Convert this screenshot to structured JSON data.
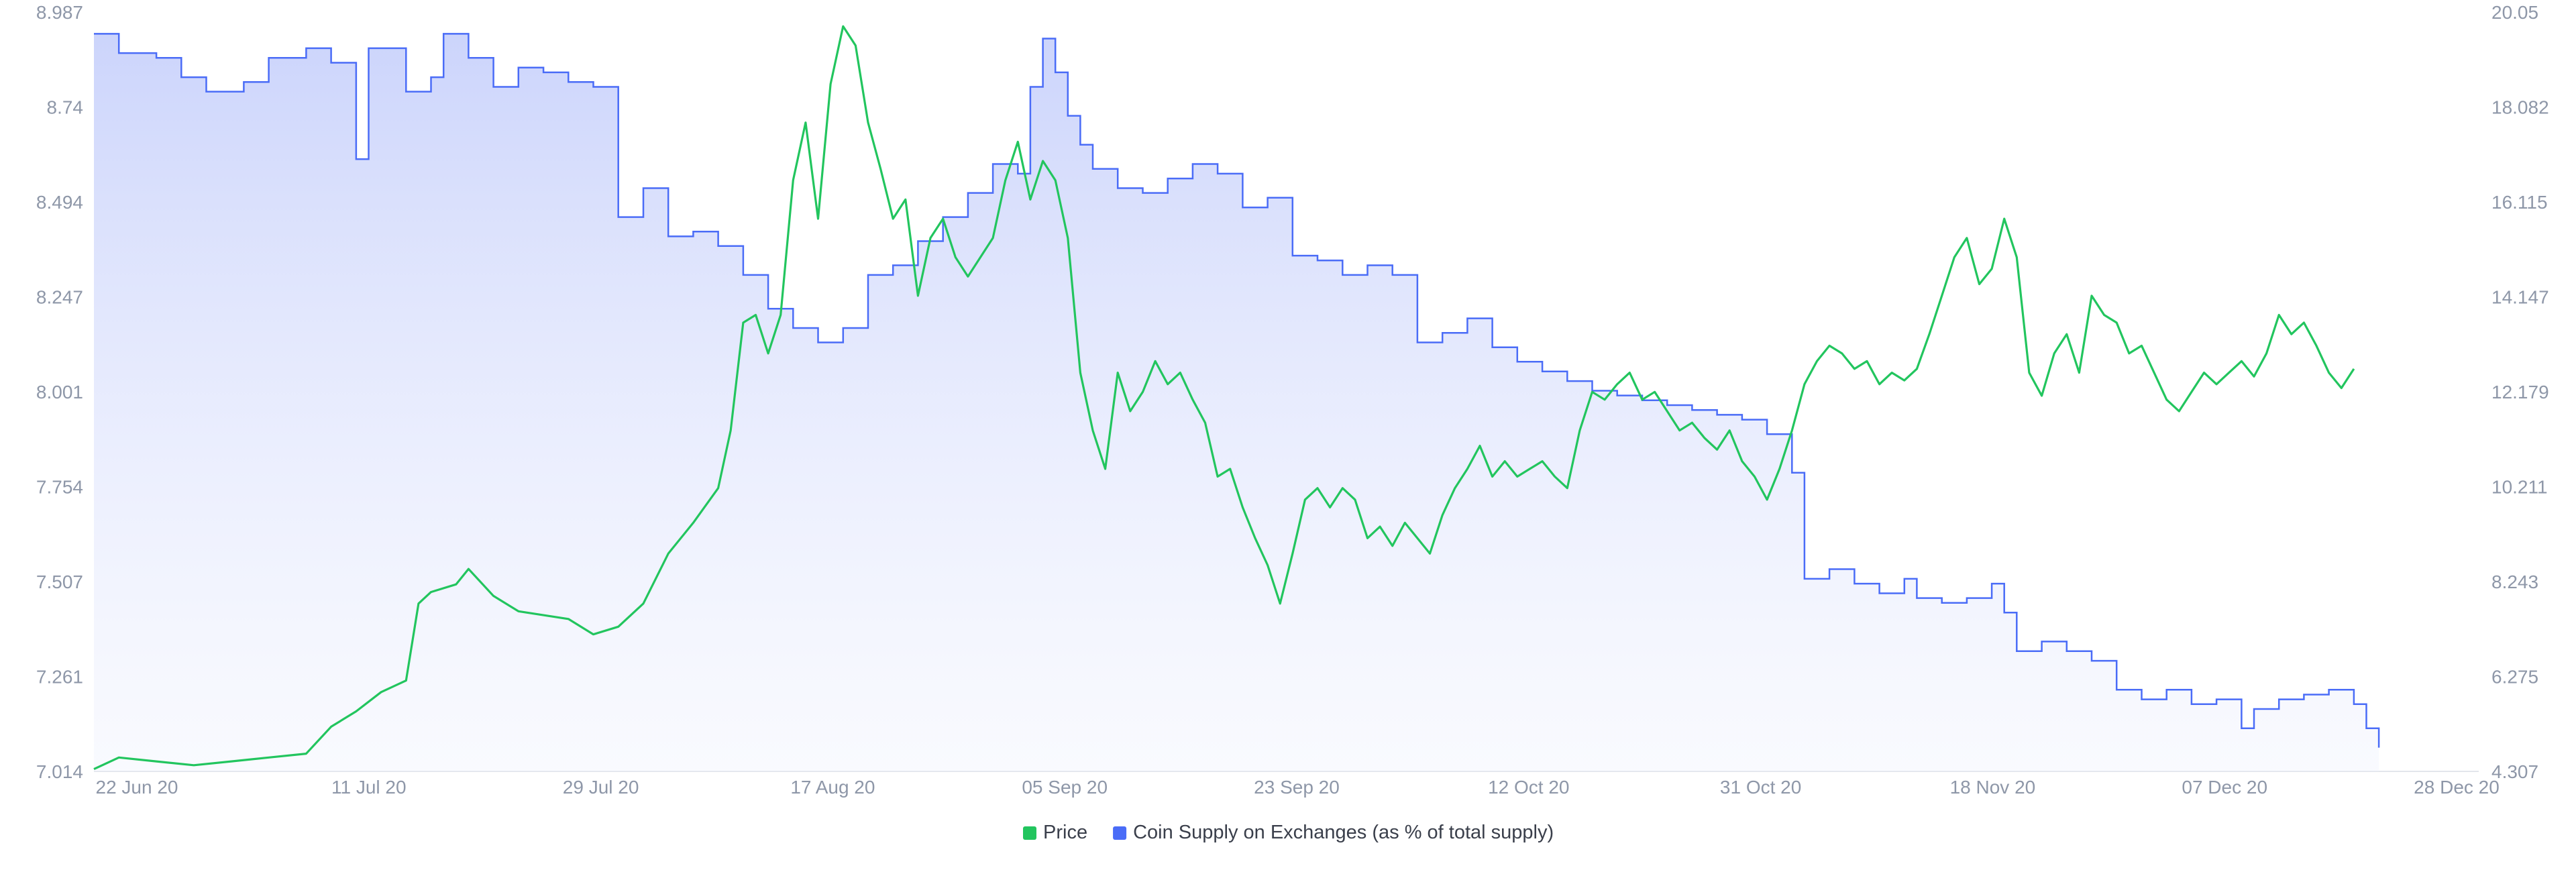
{
  "chart_data": {
    "type": "line",
    "title": "",
    "xlabel": "",
    "x_tick_labels": [
      "22 Jun 20",
      "11 Jul 20",
      "29 Jul 20",
      "17 Aug 20",
      "05 Sep 20",
      "23 Sep 20",
      "12 Oct 20",
      "31 Oct 20",
      "18 Nov 20",
      "07 Dec 20",
      "28 Dec 20"
    ],
    "x_range": [
      "2020-06-20",
      "2020-12-28"
    ],
    "y_left": {
      "range": [
        7.014,
        8.987
      ],
      "ticks": [
        "8.987",
        "8.74",
        "8.494",
        "8.247",
        "8.001",
        "7.754",
        "7.507",
        "7.261",
        "7.014"
      ]
    },
    "y_right": {
      "range": [
        4.307,
        20.05
      ],
      "ticks": [
        "20.05",
        "18.082",
        "16.115",
        "14.147",
        "12.179",
        "10.211",
        "8.243",
        "6.275",
        "4.307"
      ]
    },
    "grid": false,
    "legend_position": "bottom-center",
    "series": [
      {
        "name": "Price",
        "axis": "left",
        "style": "line",
        "color": "#22c55e",
        "points": [
          [
            "2020-06-20",
            7.02
          ],
          [
            "2020-06-22",
            7.05
          ],
          [
            "2020-06-25",
            7.04
          ],
          [
            "2020-06-28",
            7.03
          ],
          [
            "2020-07-01",
            7.04
          ],
          [
            "2020-07-04",
            7.05
          ],
          [
            "2020-07-07",
            7.06
          ],
          [
            "2020-07-09",
            7.13
          ],
          [
            "2020-07-11",
            7.17
          ],
          [
            "2020-07-13",
            7.22
          ],
          [
            "2020-07-15",
            7.25
          ],
          [
            "2020-07-16",
            7.45
          ],
          [
            "2020-07-17",
            7.48
          ],
          [
            "2020-07-19",
            7.5
          ],
          [
            "2020-07-20",
            7.54
          ],
          [
            "2020-07-22",
            7.47
          ],
          [
            "2020-07-24",
            7.43
          ],
          [
            "2020-07-26",
            7.42
          ],
          [
            "2020-07-28",
            7.41
          ],
          [
            "2020-07-30",
            7.37
          ],
          [
            "2020-08-01",
            7.39
          ],
          [
            "2020-08-03",
            7.45
          ],
          [
            "2020-08-05",
            7.58
          ],
          [
            "2020-08-07",
            7.66
          ],
          [
            "2020-08-09",
            7.75
          ],
          [
            "2020-08-10",
            7.9
          ],
          [
            "2020-08-11",
            8.18
          ],
          [
            "2020-08-12",
            8.2
          ],
          [
            "2020-08-13",
            8.1
          ],
          [
            "2020-08-14",
            8.2
          ],
          [
            "2020-08-15",
            8.55
          ],
          [
            "2020-08-16",
            8.7
          ],
          [
            "2020-08-17",
            8.45
          ],
          [
            "2020-08-18",
            8.8
          ],
          [
            "2020-08-19",
            8.95
          ],
          [
            "2020-08-20",
            8.9
          ],
          [
            "2020-08-21",
            8.7
          ],
          [
            "2020-08-22",
            8.58
          ],
          [
            "2020-08-23",
            8.45
          ],
          [
            "2020-08-24",
            8.5
          ],
          [
            "2020-08-25",
            8.25
          ],
          [
            "2020-08-26",
            8.4
          ],
          [
            "2020-08-27",
            8.45
          ],
          [
            "2020-08-28",
            8.35
          ],
          [
            "2020-08-29",
            8.3
          ],
          [
            "2020-08-31",
            8.4
          ],
          [
            "2020-09-01",
            8.55
          ],
          [
            "2020-09-02",
            8.65
          ],
          [
            "2020-09-03",
            8.5
          ],
          [
            "2020-09-04",
            8.6
          ],
          [
            "2020-09-05",
            8.55
          ],
          [
            "2020-09-06",
            8.4
          ],
          [
            "2020-09-07",
            8.05
          ],
          [
            "2020-09-08",
            7.9
          ],
          [
            "2020-09-09",
            7.8
          ],
          [
            "2020-09-10",
            8.05
          ],
          [
            "2020-09-11",
            7.95
          ],
          [
            "2020-09-12",
            8.0
          ],
          [
            "2020-09-13",
            8.08
          ],
          [
            "2020-09-14",
            8.02
          ],
          [
            "2020-09-15",
            8.05
          ],
          [
            "2020-09-16",
            7.98
          ],
          [
            "2020-09-17",
            7.92
          ],
          [
            "2020-09-18",
            7.78
          ],
          [
            "2020-09-19",
            7.8
          ],
          [
            "2020-09-20",
            7.7
          ],
          [
            "2020-09-21",
            7.62
          ],
          [
            "2020-09-22",
            7.55
          ],
          [
            "2020-09-23",
            7.45
          ],
          [
            "2020-09-24",
            7.58
          ],
          [
            "2020-09-25",
            7.72
          ],
          [
            "2020-09-26",
            7.75
          ],
          [
            "2020-09-27",
            7.7
          ],
          [
            "2020-09-28",
            7.75
          ],
          [
            "2020-09-29",
            7.72
          ],
          [
            "2020-09-30",
            7.62
          ],
          [
            "2020-10-01",
            7.65
          ],
          [
            "2020-10-02",
            7.6
          ],
          [
            "2020-10-03",
            7.66
          ],
          [
            "2020-10-05",
            7.58
          ],
          [
            "2020-10-06",
            7.68
          ],
          [
            "2020-10-07",
            7.75
          ],
          [
            "2020-10-08",
            7.8
          ],
          [
            "2020-10-09",
            7.86
          ],
          [
            "2020-10-10",
            7.78
          ],
          [
            "2020-10-11",
            7.82
          ],
          [
            "2020-10-12",
            7.78
          ],
          [
            "2020-10-13",
            7.8
          ],
          [
            "2020-10-14",
            7.82
          ],
          [
            "2020-10-15",
            7.78
          ],
          [
            "2020-10-16",
            7.75
          ],
          [
            "2020-10-17",
            7.9
          ],
          [
            "2020-10-18",
            8.0
          ],
          [
            "2020-10-19",
            7.98
          ],
          [
            "2020-10-20",
            8.02
          ],
          [
            "2020-10-21",
            8.05
          ],
          [
            "2020-10-22",
            7.98
          ],
          [
            "2020-10-23",
            8.0
          ],
          [
            "2020-10-24",
            7.95
          ],
          [
            "2020-10-25",
            7.9
          ],
          [
            "2020-10-26",
            7.92
          ],
          [
            "2020-10-27",
            7.88
          ],
          [
            "2020-10-28",
            7.85
          ],
          [
            "2020-10-29",
            7.9
          ],
          [
            "2020-10-30",
            7.82
          ],
          [
            "2020-10-31",
            7.78
          ],
          [
            "2020-11-01",
            7.72
          ],
          [
            "2020-11-02",
            7.8
          ],
          [
            "2020-11-03",
            7.9
          ],
          [
            "2020-11-04",
            8.02
          ],
          [
            "2020-11-05",
            8.08
          ],
          [
            "2020-11-06",
            8.12
          ],
          [
            "2020-11-07",
            8.1
          ],
          [
            "2020-11-08",
            8.06
          ],
          [
            "2020-11-09",
            8.08
          ],
          [
            "2020-11-10",
            8.02
          ],
          [
            "2020-11-11",
            8.05
          ],
          [
            "2020-11-12",
            8.03
          ],
          [
            "2020-11-13",
            8.06
          ],
          [
            "2020-11-14",
            8.15
          ],
          [
            "2020-11-15",
            8.25
          ],
          [
            "2020-11-16",
            8.35
          ],
          [
            "2020-11-17",
            8.4
          ],
          [
            "2020-11-18",
            8.28
          ],
          [
            "2020-11-19",
            8.32
          ],
          [
            "2020-11-20",
            8.45
          ],
          [
            "2020-11-21",
            8.35
          ],
          [
            "2020-11-22",
            8.05
          ],
          [
            "2020-11-23",
            7.99
          ],
          [
            "2020-11-24",
            8.1
          ],
          [
            "2020-11-25",
            8.15
          ],
          [
            "2020-11-26",
            8.05
          ],
          [
            "2020-11-27",
            8.25
          ],
          [
            "2020-11-28",
            8.2
          ],
          [
            "2020-11-29",
            8.18
          ],
          [
            "2020-11-30",
            8.1
          ],
          [
            "2020-12-01",
            8.12
          ],
          [
            "2020-12-02",
            8.05
          ],
          [
            "2020-12-03",
            7.98
          ],
          [
            "2020-12-04",
            7.95
          ],
          [
            "2020-12-05",
            8.0
          ],
          [
            "2020-12-06",
            8.05
          ],
          [
            "2020-12-07",
            8.02
          ],
          [
            "2020-12-08",
            8.05
          ],
          [
            "2020-12-09",
            8.08
          ],
          [
            "2020-12-10",
            8.04
          ],
          [
            "2020-12-11",
            8.1
          ],
          [
            "2020-12-12",
            8.2
          ],
          [
            "2020-12-13",
            8.15
          ],
          [
            "2020-12-14",
            8.18
          ],
          [
            "2020-12-15",
            8.12
          ],
          [
            "2020-12-16",
            8.05
          ],
          [
            "2020-12-17",
            8.01
          ],
          [
            "2020-12-18",
            8.06
          ]
        ]
      },
      {
        "name": "Coin Supply on Exchanges (as % of total supply)",
        "axis": "right",
        "style": "step-area",
        "color": "#4a6cf7",
        "fill": "#c9d2fb",
        "points": [
          [
            "2020-06-20",
            19.6
          ],
          [
            "2020-06-22",
            19.2
          ],
          [
            "2020-06-25",
            19.1
          ],
          [
            "2020-06-27",
            18.7
          ],
          [
            "2020-06-29",
            18.4
          ],
          [
            "2020-07-02",
            18.6
          ],
          [
            "2020-07-04",
            19.1
          ],
          [
            "2020-07-07",
            19.3
          ],
          [
            "2020-07-09",
            19.0
          ],
          [
            "2020-07-11",
            17.0
          ],
          [
            "2020-07-12",
            19.3
          ],
          [
            "2020-07-15",
            18.4
          ],
          [
            "2020-07-17",
            18.7
          ],
          [
            "2020-07-18",
            19.6
          ],
          [
            "2020-07-20",
            19.1
          ],
          [
            "2020-07-22",
            18.5
          ],
          [
            "2020-07-24",
            18.9
          ],
          [
            "2020-07-26",
            18.8
          ],
          [
            "2020-07-28",
            18.6
          ],
          [
            "2020-07-30",
            18.5
          ],
          [
            "2020-08-01",
            15.8
          ],
          [
            "2020-08-03",
            16.4
          ],
          [
            "2020-08-05",
            15.4
          ],
          [
            "2020-08-07",
            15.5
          ],
          [
            "2020-08-09",
            15.2
          ],
          [
            "2020-08-11",
            14.6
          ],
          [
            "2020-08-13",
            13.9
          ],
          [
            "2020-08-15",
            13.5
          ],
          [
            "2020-08-17",
            13.2
          ],
          [
            "2020-08-19",
            13.5
          ],
          [
            "2020-08-21",
            14.6
          ],
          [
            "2020-08-23",
            14.8
          ],
          [
            "2020-08-25",
            15.3
          ],
          [
            "2020-08-27",
            15.8
          ],
          [
            "2020-08-29",
            16.3
          ],
          [
            "2020-08-31",
            16.9
          ],
          [
            "2020-09-02",
            16.7
          ],
          [
            "2020-09-03",
            18.5
          ],
          [
            "2020-09-04",
            19.5
          ],
          [
            "2020-09-05",
            18.8
          ],
          [
            "2020-09-06",
            17.9
          ],
          [
            "2020-09-07",
            17.3
          ],
          [
            "2020-09-08",
            16.8
          ],
          [
            "2020-09-10",
            16.4
          ],
          [
            "2020-09-12",
            16.3
          ],
          [
            "2020-09-14",
            16.6
          ],
          [
            "2020-09-16",
            16.9
          ],
          [
            "2020-09-18",
            16.7
          ],
          [
            "2020-09-20",
            16.0
          ],
          [
            "2020-09-22",
            16.2
          ],
          [
            "2020-09-24",
            15.0
          ],
          [
            "2020-09-26",
            14.9
          ],
          [
            "2020-09-28",
            14.6
          ],
          [
            "2020-09-30",
            14.8
          ],
          [
            "2020-10-02",
            14.6
          ],
          [
            "2020-10-04",
            13.2
          ],
          [
            "2020-10-06",
            13.4
          ],
          [
            "2020-10-08",
            13.7
          ],
          [
            "2020-10-10",
            13.1
          ],
          [
            "2020-10-12",
            12.8
          ],
          [
            "2020-10-14",
            12.6
          ],
          [
            "2020-10-16",
            12.4
          ],
          [
            "2020-10-18",
            12.2
          ],
          [
            "2020-10-20",
            12.1
          ],
          [
            "2020-10-22",
            12.0
          ],
          [
            "2020-10-24",
            11.9
          ],
          [
            "2020-10-26",
            11.8
          ],
          [
            "2020-10-28",
            11.7
          ],
          [
            "2020-10-30",
            11.6
          ],
          [
            "2020-11-01",
            11.3
          ],
          [
            "2020-11-03",
            10.5
          ],
          [
            "2020-11-04",
            8.3
          ],
          [
            "2020-11-06",
            8.5
          ],
          [
            "2020-11-08",
            8.2
          ],
          [
            "2020-11-10",
            8.0
          ],
          [
            "2020-11-12",
            8.3
          ],
          [
            "2020-11-13",
            7.9
          ],
          [
            "2020-11-15",
            7.8
          ],
          [
            "2020-11-17",
            7.9
          ],
          [
            "2020-11-19",
            8.2
          ],
          [
            "2020-11-20",
            7.6
          ],
          [
            "2020-11-21",
            6.8
          ],
          [
            "2020-11-23",
            7.0
          ],
          [
            "2020-11-25",
            6.8
          ],
          [
            "2020-11-27",
            6.6
          ],
          [
            "2020-11-29",
            6.0
          ],
          [
            "2020-12-01",
            5.8
          ],
          [
            "2020-12-03",
            6.0
          ],
          [
            "2020-12-05",
            5.7
          ],
          [
            "2020-12-07",
            5.8
          ],
          [
            "2020-12-09",
            5.2
          ],
          [
            "2020-12-10",
            5.6
          ],
          [
            "2020-12-12",
            5.8
          ],
          [
            "2020-12-14",
            5.9
          ],
          [
            "2020-12-16",
            6.0
          ],
          [
            "2020-12-18",
            5.7
          ],
          [
            "2020-12-19",
            5.2
          ],
          [
            "2020-12-20",
            4.8
          ]
        ]
      }
    ]
  }
}
